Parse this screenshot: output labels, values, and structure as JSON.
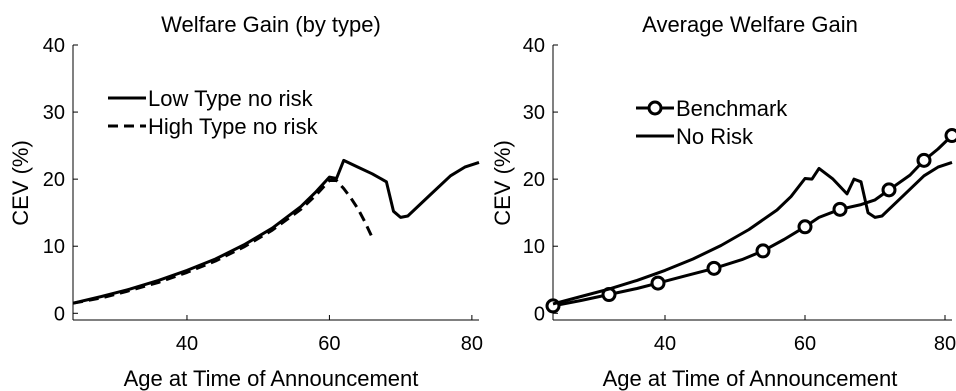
{
  "chart_data": [
    {
      "type": "line",
      "title": "Welfare Gain (by type)",
      "xlabel": "Age at Time of Announcement",
      "ylabel": "CEV (%)",
      "xlim": [
        24,
        81
      ],
      "ylim": [
        -1,
        40
      ],
      "xticks": [
        40,
        60,
        80
      ],
      "yticks": [
        0,
        10,
        20,
        30,
        40
      ],
      "legend_position": "top-left",
      "series": [
        {
          "name": "Low Type no risk",
          "style": "solid",
          "x": [
            24,
            28,
            32,
            36,
            40,
            44,
            48,
            52,
            56,
            58,
            60,
            61,
            62,
            64,
            66,
            68,
            69,
            70,
            71,
            74,
            77,
            79,
            81
          ],
          "y": [
            1.5,
            2.5,
            3.6,
            4.9,
            6.4,
            8.1,
            10.2,
            12.7,
            15.9,
            18.0,
            20.3,
            20.1,
            22.8,
            21.8,
            20.8,
            19.6,
            15.2,
            14.3,
            14.5,
            17.5,
            20.5,
            21.8,
            22.5
          ]
        },
        {
          "name": "High Type no risk",
          "style": "dashed",
          "x": [
            24,
            28,
            32,
            36,
            40,
            44,
            48,
            52,
            56,
            58,
            60,
            61,
            62,
            63,
            64,
            65,
            66
          ],
          "y": [
            1.5,
            2.3,
            3.4,
            4.6,
            6.1,
            7.8,
            9.9,
            12.4,
            15.5,
            17.5,
            19.8,
            19.8,
            18.6,
            17.2,
            15.6,
            13.6,
            11.3
          ]
        }
      ]
    },
    {
      "type": "line",
      "title": "Average Welfare Gain",
      "xlabel": "Age at Time of Announcement",
      "ylabel": "CEV (%)",
      "xlim": [
        24,
        81
      ],
      "ylim": [
        -1,
        40
      ],
      "xticks": [
        40,
        60,
        80
      ],
      "yticks": [
        0,
        10,
        20,
        30,
        40
      ],
      "legend_position": "top-left",
      "series": [
        {
          "name": "Benchmark",
          "style": "solid-circle",
          "x": [
            24,
            28,
            32,
            36,
            39,
            43,
            47,
            51,
            54,
            57,
            60,
            62,
            65,
            68,
            70,
            72,
            75,
            77,
            79,
            81
          ],
          "y": [
            1.1,
            1.9,
            2.8,
            3.7,
            4.5,
            5.6,
            6.7,
            8.0,
            9.3,
            11.0,
            12.9,
            14.3,
            15.5,
            16.2,
            16.9,
            18.4,
            20.6,
            22.8,
            24.5,
            26.5
          ],
          "markers_x": [
            24,
            32,
            39,
            47,
            54,
            60,
            65,
            72,
            77,
            81
          ],
          "markers_y": [
            1.1,
            2.8,
            4.5,
            6.7,
            9.3,
            12.9,
            15.5,
            18.4,
            22.8,
            26.5
          ]
        },
        {
          "name": "No Risk",
          "style": "solid",
          "x": [
            24,
            28,
            32,
            36,
            40,
            44,
            48,
            52,
            56,
            58,
            60,
            61,
            62,
            64,
            66,
            67,
            68,
            69,
            70,
            71,
            74,
            77,
            79,
            81
          ],
          "y": [
            1.4,
            2.5,
            3.6,
            4.9,
            6.4,
            8.1,
            10.1,
            12.5,
            15.4,
            17.4,
            20.1,
            20.0,
            21.6,
            20.0,
            17.8,
            20.0,
            19.6,
            15.0,
            14.3,
            14.5,
            17.5,
            20.5,
            21.8,
            22.5
          ]
        }
      ]
    }
  ]
}
